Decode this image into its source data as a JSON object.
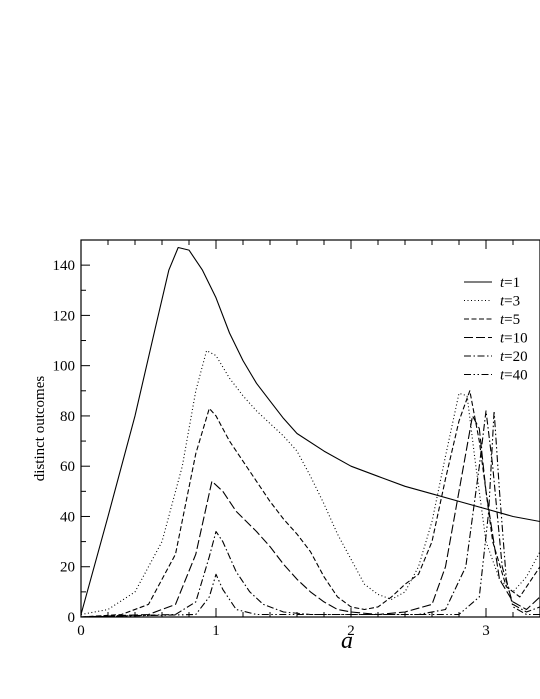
{
  "chart_data": {
    "type": "line",
    "title": "",
    "xlabel": "a",
    "ylabel": "distinct outcomes",
    "xlim": [
      0,
      3.4
    ],
    "ylim": [
      0,
      150
    ],
    "x_ticks": [
      0,
      1,
      2,
      3
    ],
    "y_ticks": [
      0,
      20,
      40,
      60,
      80,
      100,
      120,
      140
    ],
    "grid": false,
    "legend_position": "top-right",
    "series": [
      {
        "name": "t=1",
        "var": "t",
        "val": "1",
        "dash": "solid",
        "points": [
          [
            0,
            1
          ],
          [
            0.2,
            40
          ],
          [
            0.4,
            80
          ],
          [
            0.55,
            115
          ],
          [
            0.65,
            138
          ],
          [
            0.72,
            147
          ],
          [
            0.8,
            146
          ],
          [
            0.9,
            138
          ],
          [
            1.0,
            127
          ],
          [
            1.1,
            113
          ],
          [
            1.2,
            102
          ],
          [
            1.3,
            93
          ],
          [
            1.4,
            86
          ],
          [
            1.5,
            79
          ],
          [
            1.6,
            73
          ],
          [
            1.8,
            66
          ],
          [
            2.0,
            60
          ],
          [
            2.2,
            56
          ],
          [
            2.4,
            52
          ],
          [
            2.6,
            49
          ],
          [
            2.8,
            46
          ],
          [
            3.0,
            43
          ],
          [
            3.2,
            40
          ],
          [
            3.3,
            39
          ],
          [
            3.4,
            38
          ]
        ]
      },
      {
        "name": "t=3",
        "var": "t",
        "val": "3",
        "dash": "1,2.5",
        "points": [
          [
            0,
            1
          ],
          [
            0.2,
            3
          ],
          [
            0.4,
            10
          ],
          [
            0.6,
            30
          ],
          [
            0.75,
            60
          ],
          [
            0.85,
            90
          ],
          [
            0.93,
            106
          ],
          [
            1.0,
            104
          ],
          [
            1.1,
            95
          ],
          [
            1.2,
            88
          ],
          [
            1.3,
            82
          ],
          [
            1.4,
            77
          ],
          [
            1.5,
            72
          ],
          [
            1.6,
            66
          ],
          [
            1.7,
            56
          ],
          [
            1.8,
            45
          ],
          [
            1.9,
            33
          ],
          [
            2.0,
            23
          ],
          [
            2.1,
            13
          ],
          [
            2.2,
            9
          ],
          [
            2.3,
            7
          ],
          [
            2.4,
            10
          ],
          [
            2.5,
            20
          ],
          [
            2.6,
            38
          ],
          [
            2.7,
            64
          ],
          [
            2.8,
            89
          ],
          [
            2.86,
            88
          ],
          [
            2.92,
            62
          ],
          [
            3.0,
            30
          ],
          [
            3.1,
            15
          ],
          [
            3.2,
            10
          ],
          [
            3.3,
            16
          ],
          [
            3.4,
            26
          ]
        ]
      },
      {
        "name": "t=5",
        "var": "t",
        "val": "5",
        "dash": "5,2.5",
        "points": [
          [
            0,
            0
          ],
          [
            0.3,
            1
          ],
          [
            0.5,
            5
          ],
          [
            0.7,
            25
          ],
          [
            0.85,
            65
          ],
          [
            0.95,
            83
          ],
          [
            1.0,
            80
          ],
          [
            1.1,
            70
          ],
          [
            1.2,
            62
          ],
          [
            1.3,
            54
          ],
          [
            1.4,
            46
          ],
          [
            1.5,
            39
          ],
          [
            1.6,
            33
          ],
          [
            1.7,
            26
          ],
          [
            1.8,
            16
          ],
          [
            1.9,
            8
          ],
          [
            2.0,
            4
          ],
          [
            2.1,
            3
          ],
          [
            2.2,
            4
          ],
          [
            2.3,
            8
          ],
          [
            2.4,
            13
          ],
          [
            2.5,
            17
          ],
          [
            2.6,
            30
          ],
          [
            2.7,
            55
          ],
          [
            2.8,
            78
          ],
          [
            2.88,
            90
          ],
          [
            2.95,
            70
          ],
          [
            3.05,
            30
          ],
          [
            3.15,
            12
          ],
          [
            3.25,
            8
          ],
          [
            3.3,
            12
          ],
          [
            3.4,
            20
          ]
        ]
      },
      {
        "name": "t=10",
        "var": "t",
        "val": "10",
        "dash": "9,3",
        "points": [
          [
            0,
            0
          ],
          [
            0.5,
            1
          ],
          [
            0.7,
            5
          ],
          [
            0.85,
            25
          ],
          [
            0.97,
            54
          ],
          [
            1.05,
            50
          ],
          [
            1.15,
            42
          ],
          [
            1.3,
            34
          ],
          [
            1.4,
            28
          ],
          [
            1.5,
            21
          ],
          [
            1.6,
            15
          ],
          [
            1.7,
            10
          ],
          [
            1.8,
            6
          ],
          [
            1.9,
            3
          ],
          [
            2.0,
            2
          ],
          [
            2.2,
            1
          ],
          [
            2.4,
            2
          ],
          [
            2.6,
            5
          ],
          [
            2.7,
            20
          ],
          [
            2.8,
            50
          ],
          [
            2.9,
            80
          ],
          [
            2.95,
            75
          ],
          [
            3.0,
            50
          ],
          [
            3.1,
            15
          ],
          [
            3.2,
            6
          ],
          [
            3.3,
            3
          ],
          [
            3.4,
            8
          ]
        ]
      },
      {
        "name": "t=20",
        "var": "t",
        "val": "20",
        "dash": "7,2.5,1.5,2.5",
        "points": [
          [
            0,
            0
          ],
          [
            0.7,
            1
          ],
          [
            0.85,
            6
          ],
          [
            0.95,
            24
          ],
          [
            1.0,
            34
          ],
          [
            1.05,
            30
          ],
          [
            1.15,
            18
          ],
          [
            1.25,
            10
          ],
          [
            1.35,
            5
          ],
          [
            1.5,
            2
          ],
          [
            1.7,
            1
          ],
          [
            2.5,
            1
          ],
          [
            2.7,
            3
          ],
          [
            2.85,
            20
          ],
          [
            2.95,
            60
          ],
          [
            3.0,
            82
          ],
          [
            3.05,
            60
          ],
          [
            3.12,
            20
          ],
          [
            3.2,
            5
          ],
          [
            3.3,
            2
          ],
          [
            3.4,
            4
          ]
        ]
      },
      {
        "name": "t=40",
        "var": "t",
        "val": "40",
        "dash": "7,2.5,1.5,2.5,1.5,2.5",
        "points": [
          [
            0,
            0
          ],
          [
            0.85,
            1
          ],
          [
            0.95,
            8
          ],
          [
            1.0,
            17
          ],
          [
            1.05,
            11
          ],
          [
            1.15,
            3
          ],
          [
            1.3,
            1
          ],
          [
            2.8,
            1
          ],
          [
            2.95,
            8
          ],
          [
            3.02,
            42
          ],
          [
            3.06,
            82
          ],
          [
            3.1,
            50
          ],
          [
            3.15,
            15
          ],
          [
            3.2,
            4
          ],
          [
            3.3,
            1
          ],
          [
            3.4,
            1
          ]
        ]
      }
    ]
  }
}
